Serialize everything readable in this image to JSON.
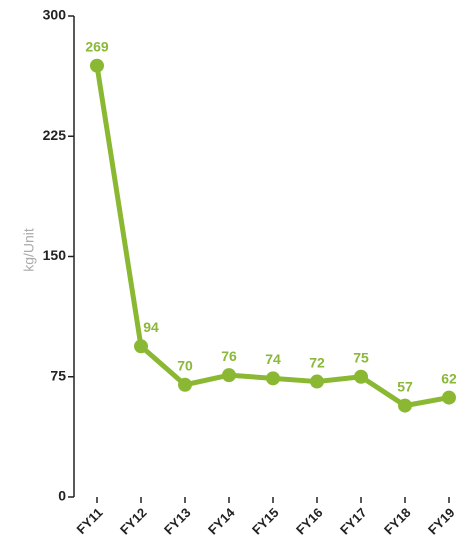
{
  "chart_data": {
    "type": "line",
    "y_label": "kg/Unit",
    "categories": [
      "FY11",
      "FY12",
      "FY13",
      "FY14",
      "FY15",
      "FY16",
      "FY17",
      "FY18",
      "FY19"
    ],
    "series": [
      {
        "name": "kg/Unit",
        "color": "#8bb833",
        "values": [
          269,
          94,
          70,
          76,
          74,
          72,
          75,
          57,
          62
        ]
      }
    ],
    "ylim": [
      0,
      300
    ],
    "yticks": [
      0,
      75,
      150,
      225,
      300
    ],
    "grid": false,
    "data_labels": true
  }
}
